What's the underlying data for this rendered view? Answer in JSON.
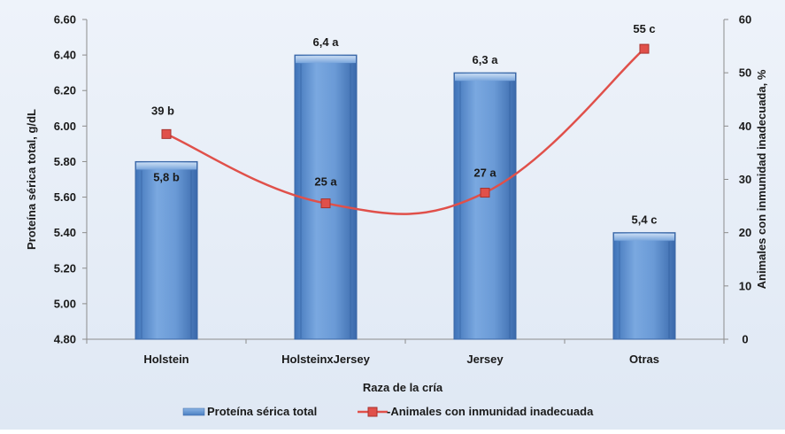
{
  "chart_data": {
    "type": "bar+line",
    "title": "",
    "categories": [
      "Holstein",
      "HolsteinxJersey",
      "Jersey",
      "Otras"
    ],
    "xlabel": "Raza de la cría",
    "ylabel_left": "Proteína sérica total, g/dL",
    "ylabel_right": "Animales con inmunidad inadecuada, %",
    "y_left_range": [
      4.8,
      6.6
    ],
    "y_left_ticks": [
      "4.80",
      "5.00",
      "5.20",
      "5.40",
      "5.60",
      "5.80",
      "6.00",
      "6.20",
      "6.40",
      "6.60"
    ],
    "y_right_range": [
      0,
      60
    ],
    "y_right_ticks": [
      "0",
      "10",
      "20",
      "30",
      "40",
      "50",
      "60"
    ],
    "grid": false,
    "legend_position": "bottom",
    "series": [
      {
        "name": "Proteína sérica total",
        "type": "bar",
        "axis": "left",
        "color": "#5b8fd0",
        "values": [
          5.8,
          6.4,
          6.3,
          5.4
        ],
        "labels": [
          "5,8 b",
          "6,4 a",
          "6,3 a",
          "5,4 c"
        ]
      },
      {
        "name": "Animales con inmunidad inadecuada",
        "type": "line",
        "axis": "right",
        "color": "#e0504a",
        "values": [
          38.5,
          25.5,
          27.5,
          54.5
        ],
        "labels": [
          "39 b",
          "25 a",
          "27 a",
          "55 c"
        ]
      }
    ]
  }
}
